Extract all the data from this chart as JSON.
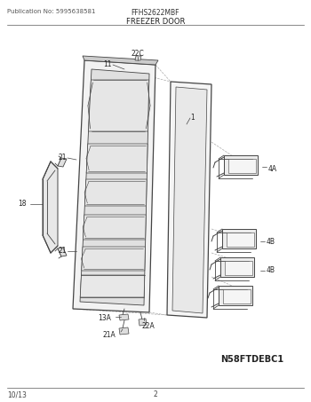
{
  "title_left": "Publication No: 5995638581",
  "title_center": "FFHS2622MBF",
  "section_title": "FREEZER DOOR",
  "diagram_code": "N58FTDEBC1",
  "footer_left": "10/13",
  "footer_center": "2",
  "bg_color": "#ffffff",
  "line_color": "#444444",
  "text_color": "#222222",
  "panel_fill": "#f2f2f2",
  "inner_fill": "#e0e0e0",
  "bin_fill": "#eeeeee"
}
